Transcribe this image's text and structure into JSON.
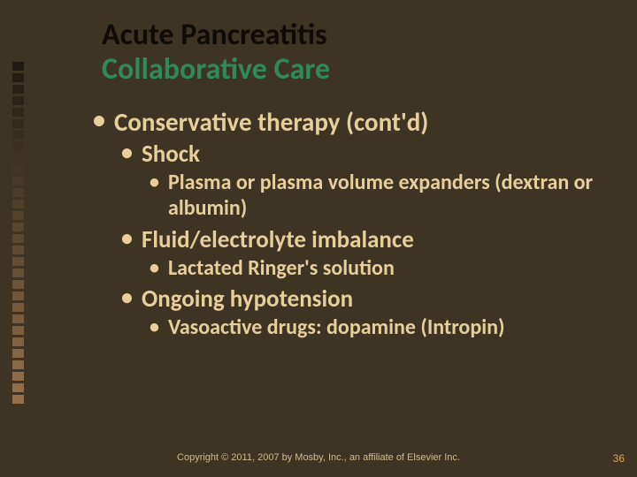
{
  "colors": {
    "background": "#3e3424",
    "title_line1": "#0e0b08",
    "title_line2": "#2f8a54",
    "body_text": "#e6cf9a",
    "bullet_dot": "#e6cf9a",
    "copyright": "#d0bc8b",
    "pagenum": "#d9a85a",
    "decor_squares": [
      "#1f1a11",
      "#231d13",
      "#272015",
      "#2b2317",
      "#2f2719",
      "#332a1b",
      "#372d1d",
      "#3b301f",
      "#3f3321",
      "#433623",
      "#473925",
      "#4b3c27",
      "#4f3f29",
      "#53422b",
      "#57452d",
      "#5b482f",
      "#5f4b31",
      "#634e33",
      "#675135",
      "#6b5437",
      "#6f5739",
      "#735a3b",
      "#775d3d",
      "#7b603f",
      "#7f6341",
      "#836643",
      "#876945",
      "#8b6c47",
      "#8f6f49",
      "#93724b"
    ]
  },
  "fonts": {
    "title_size": 34,
    "l1_size": 29,
    "l2_size": 27,
    "l3_size": 24,
    "copyright_size": 11,
    "pagenum_size": 12
  },
  "title": {
    "line1": "Acute Pancreatitis",
    "line2": "Collaborative Care"
  },
  "bullets": [
    {
      "level": 1,
      "text": "Conservative therapy (cont'd)"
    },
    {
      "level": 2,
      "text": "Shock"
    },
    {
      "level": 3,
      "text": "Plasma or plasma volume expanders (dextran or albumin)"
    },
    {
      "level": 2,
      "text": "Fluid/electrolyte imbalance"
    },
    {
      "level": 3,
      "text": "Lactated Ringer's solution"
    },
    {
      "level": 2,
      "text": "Ongoing hypotension"
    },
    {
      "level": 3,
      "text": "Vasoactive drugs: dopamine (Intropin)"
    }
  ],
  "copyright": "Copyright © 2011, 2007 by Mosby, Inc., an affiliate of Elsevier Inc.",
  "page_number": "36"
}
